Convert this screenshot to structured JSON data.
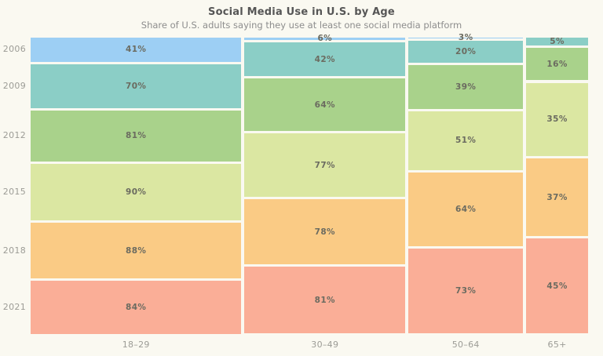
{
  "page": {
    "background_color": "#FAF9F1"
  },
  "chart_data": {
    "type": "mosaic",
    "title": "Social Media Use in U.S. by Age",
    "subtitle": "Share of U.S. adults saying they use at least one social media platform",
    "unit": "%",
    "x_categories": [
      "18–29",
      "30–49",
      "50–64",
      "65+"
    ],
    "y_categories": [
      "2006",
      "2009",
      "2012",
      "2015",
      "2018",
      "2021"
    ],
    "series": [
      {
        "name": "18–29",
        "values": [
          41,
          70,
          81,
          90,
          88,
          84
        ]
      },
      {
        "name": "30–49",
        "values": [
          6,
          42,
          64,
          77,
          78,
          81
        ]
      },
      {
        "name": "50–64",
        "values": [
          3,
          20,
          39,
          51,
          64,
          73
        ]
      },
      {
        "name": "65+",
        "values": [
          null,
          5,
          16,
          35,
          37,
          45
        ]
      }
    ],
    "year_colors": [
      "#9DCFF4",
      "#8BCEC6",
      "#A9D28B",
      "#DBE7A2",
      "#FACB85",
      "#FAAE97"
    ],
    "value_label_color": "#6B6B60",
    "axis_label_color": "#9C9C96",
    "title_color": "#565656",
    "subtitle_color": "#8D8D8D",
    "layout_hints": {
      "column_width": "proportional to column total",
      "cell_height": "value normalized to full column height",
      "legend": "none",
      "grid": "off"
    }
  }
}
